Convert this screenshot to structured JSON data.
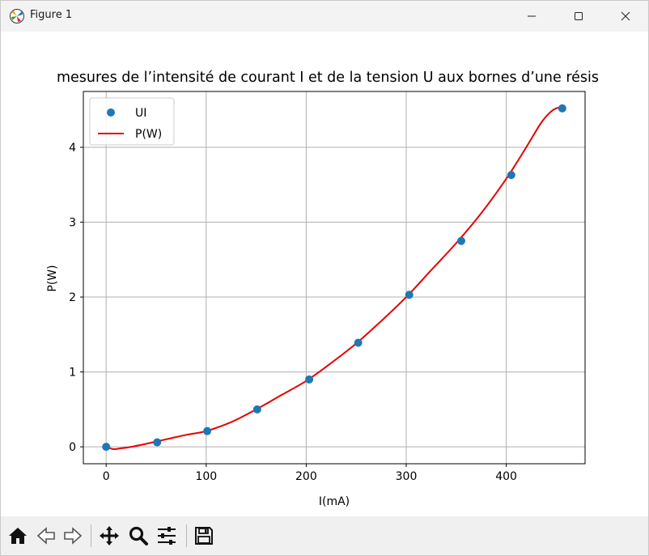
{
  "window": {
    "title": "Figure 1",
    "buttons": {
      "minimize": "minimize",
      "maximize": "maximize",
      "close": "close"
    }
  },
  "toolbar": {
    "tools": [
      "home-icon",
      "back-icon",
      "forward-icon",
      "pan-icon",
      "zoom-icon",
      "configure-subplots-icon",
      "save-icon"
    ]
  },
  "chart_data": {
    "type": "scatter",
    "title": "mesures de l’intensité de courant I et de la tension U aux bornes d’une résis",
    "xlabel": "I(mA)",
    "ylabel": "P(W)",
    "xlim": [
      -22.8,
      478.8
    ],
    "ylim": [
      -0.226,
      4.746
    ],
    "xticks": [
      0,
      100,
      200,
      300,
      400
    ],
    "yticks": [
      0,
      1,
      2,
      3,
      4
    ],
    "grid": true,
    "legend": {
      "placement": "upper-left",
      "entries": [
        "UI",
        "P(W)"
      ]
    },
    "series": [
      {
        "name": "UI",
        "kind": "scatter",
        "color": "#1f77b4",
        "x": [
          0,
          51,
          101,
          151,
          203,
          252,
          303,
          355,
          405,
          456
        ],
        "y": [
          0.0,
          0.06,
          0.21,
          0.5,
          0.9,
          1.39,
          2.03,
          2.75,
          3.63,
          4.52
        ]
      },
      {
        "name": "P(W)",
        "kind": "line",
        "color": "#e60000",
        "x": [
          0,
          7,
          15,
          25,
          40,
          60,
          80,
          100,
          125,
          150,
          175,
          200,
          225,
          250,
          275,
          300,
          325,
          350,
          375,
          400,
          420,
          435,
          445,
          452,
          456
        ],
        "y": [
          0.0,
          -0.03,
          -0.02,
          0.0,
          0.04,
          0.1,
          0.16,
          0.21,
          0.33,
          0.5,
          0.69,
          0.88,
          1.12,
          1.38,
          1.68,
          2.0,
          2.36,
          2.72,
          3.12,
          3.58,
          4.0,
          4.33,
          4.48,
          4.53,
          4.54
        ]
      }
    ]
  }
}
